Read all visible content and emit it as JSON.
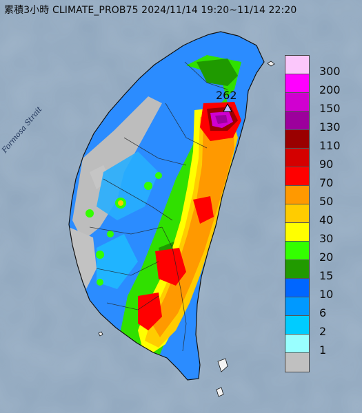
{
  "title": "累積3小時 CLIMATE_PROB75 2024/11/14 19:20~11/14 22:20",
  "strait_label": "Formosa Strait",
  "max_label": "262",
  "colors": {
    "sea": "#8fa6bd",
    "land_base": "#2b8cff"
  },
  "legend": {
    "labels": [
      "300",
      "200",
      "150",
      "130",
      "110",
      "90",
      "70",
      "50",
      "40",
      "30",
      "20",
      "15",
      "10",
      "6",
      "2",
      "1"
    ],
    "colors": [
      "#fbc7fb",
      "#ff00ff",
      "#d000d0",
      "#9c009c",
      "#9a0000",
      "#d40000",
      "#ff0000",
      "#ff9900",
      "#ffcc00",
      "#ffff00",
      "#33ff00",
      "#219a00",
      "#0066ff",
      "#0099ff",
      "#00ccff",
      "#99ffff",
      "#c0c0c0"
    ]
  }
}
